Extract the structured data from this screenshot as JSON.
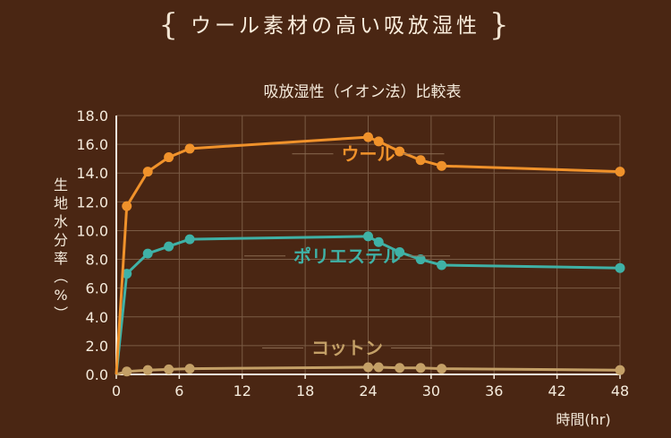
{
  "header": {
    "title": "ウール素材の高い吸放湿性"
  },
  "chart_data": {
    "type": "line",
    "title": "吸放湿性（イオン法）比較表",
    "xlabel": "時間(hr)",
    "ylabel": "生地水分率（%）",
    "xlim": [
      0,
      48
    ],
    "ylim": [
      0,
      18
    ],
    "x_ticks": [
      0,
      6,
      12,
      18,
      24,
      30,
      36,
      42,
      48
    ],
    "x_tick_labels": [
      "0",
      "6",
      "12",
      "18",
      "24",
      "30",
      "36",
      "42",
      "48"
    ],
    "y_ticks": [
      0,
      2,
      4,
      6,
      8,
      10,
      12,
      14,
      16,
      18
    ],
    "y_tick_labels": [
      "0.0",
      "2.0",
      "4.0",
      "6.0",
      "8.0",
      "10.0",
      "12.0",
      "14.0",
      "16.0",
      "18.0"
    ],
    "grid": true,
    "series": [
      {
        "name": "ウール",
        "color": "#f0922b",
        "label_at": [
          24,
          14.9
        ],
        "x": [
          0,
          1,
          3,
          5,
          7,
          24,
          25,
          27,
          29,
          31,
          48
        ],
        "y": [
          0,
          11.7,
          14.1,
          15.1,
          15.7,
          16.5,
          16.2,
          15.5,
          14.9,
          14.5,
          14.1
        ]
      },
      {
        "name": "ポリエステル",
        "color": "#3fb1a6",
        "label_at": [
          22,
          7.8
        ],
        "x": [
          0,
          1,
          3,
          5,
          7,
          24,
          25,
          27,
          29,
          31,
          48
        ],
        "y": [
          0,
          7.0,
          8.4,
          8.9,
          9.4,
          9.6,
          9.2,
          8.5,
          8.0,
          7.6,
          7.4
        ]
      },
      {
        "name": "コットン",
        "color": "#c4a067",
        "label_at": [
          22,
          1.4
        ],
        "x": [
          0,
          1,
          3,
          5,
          7,
          24,
          25,
          27,
          29,
          31,
          48
        ],
        "y": [
          0,
          0.2,
          0.3,
          0.35,
          0.4,
          0.5,
          0.5,
          0.45,
          0.45,
          0.4,
          0.3
        ]
      }
    ]
  }
}
